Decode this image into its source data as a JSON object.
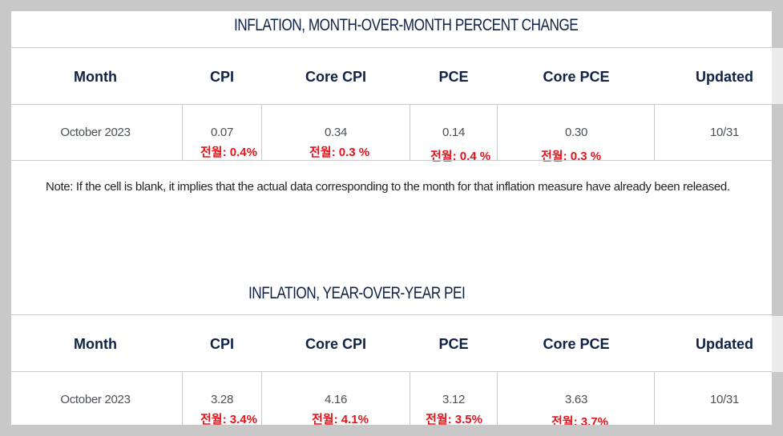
{
  "mom": {
    "title": "INFLATION, MONTH-OVER-MONTH PERCENT CHANGE",
    "headers": [
      "Month",
      "CPI",
      "Core CPI",
      "PCE",
      "Core PCE",
      "Updated"
    ],
    "row": [
      "October 2023",
      "0.07",
      "0.34",
      "0.14",
      "0.30",
      "10/31"
    ],
    "annotations": [
      "전월: 0.4%",
      "전월: 0.3 %",
      "전월: 0.4 %",
      "전월: 0.3 %"
    ]
  },
  "note": "Note: If the cell is blank, it implies that the actual data corresponding to the month for that inflation measure have already been released.",
  "yoy": {
    "title": "INFLATION, YEAR-OVER-YEAR PEI",
    "headers": [
      "Month",
      "CPI",
      "Core CPI",
      "PCE",
      "Core PCE",
      "Updated"
    ],
    "row": [
      "October 2023",
      "3.28",
      "4.16",
      "3.12",
      "3.63",
      "10/31"
    ],
    "annotations": [
      "전월: 3.4%",
      "전월: 4.1%",
      "전월: 3.5%",
      "전월: 3.7%"
    ]
  },
  "colors": {
    "title": "#0e2245",
    "annotation": "#e1141b",
    "cell_text": "#4a4f57",
    "rule": "#c9c9c9",
    "backdrop": "#c8c8c8"
  }
}
